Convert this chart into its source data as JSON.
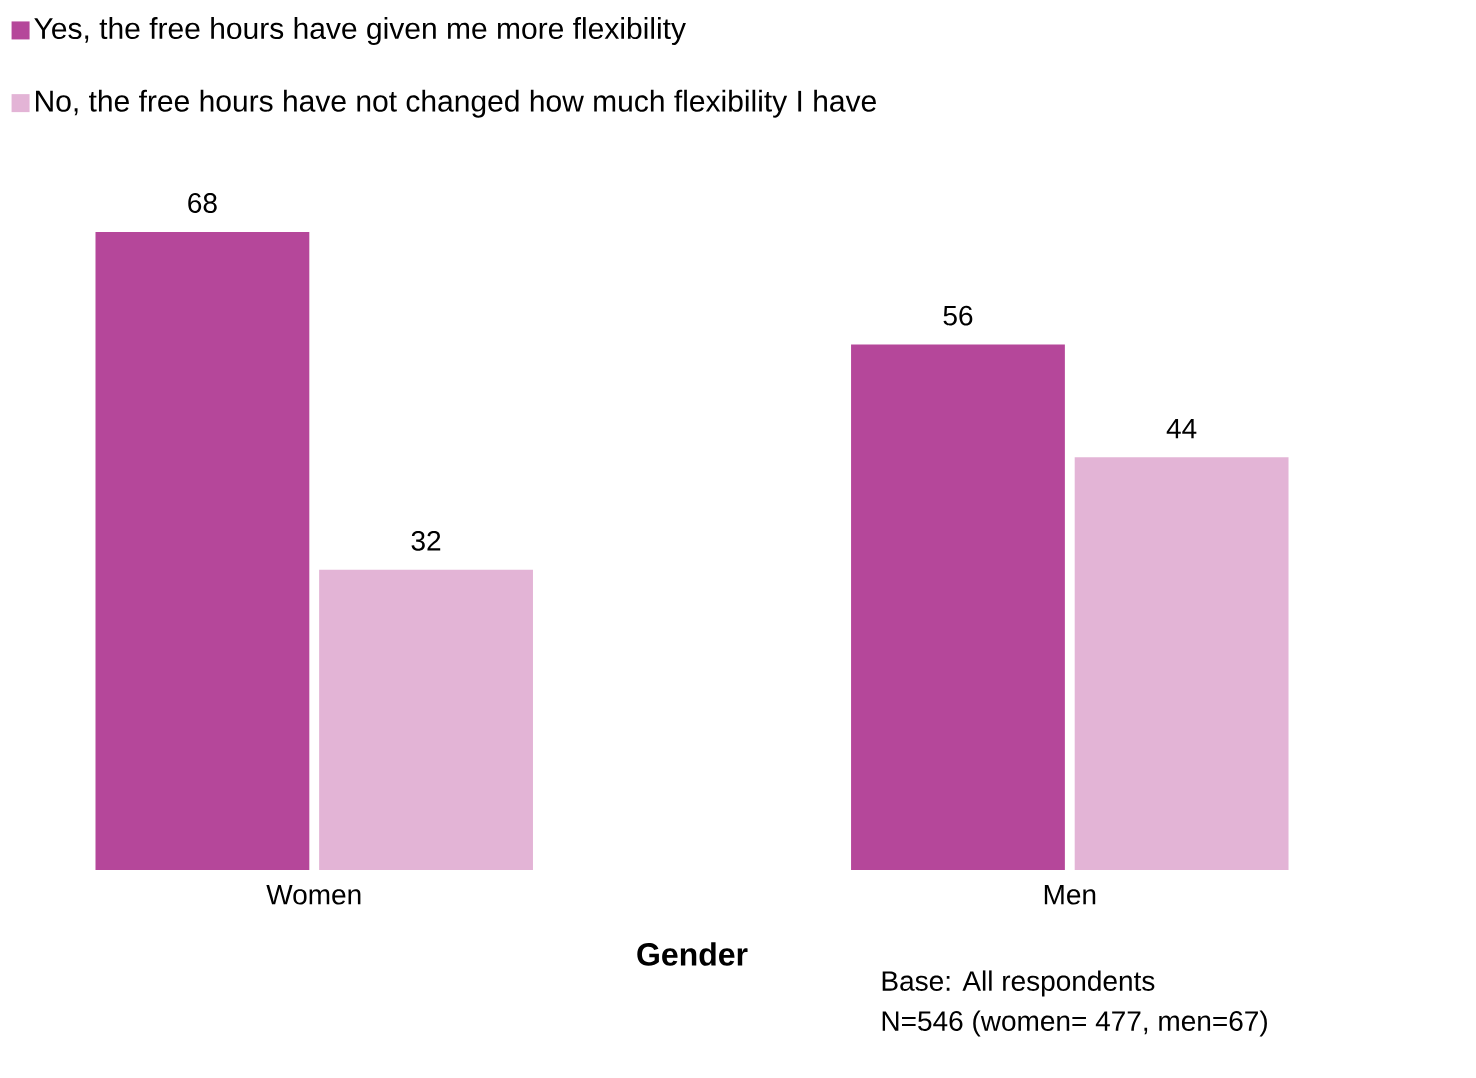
{
  "chart_data": {
    "type": "bar",
    "xlabel": "Gender",
    "categories": [
      "Women",
      "Men"
    ],
    "series": [
      {
        "name": "Yes, the free hours have given me more flexibility",
        "color": "#b5479a",
        "values": [
          68,
          56
        ]
      },
      {
        "name": "No, the free hours have not changed how much flexibility I have",
        "color": "#e3b4d6",
        "values": [
          32,
          44
        ]
      }
    ],
    "data_labels": true,
    "legend": "top left",
    "annotations": [
      "Base: All respondents",
      "N=546 (women= 477, men=67)"
    ]
  }
}
